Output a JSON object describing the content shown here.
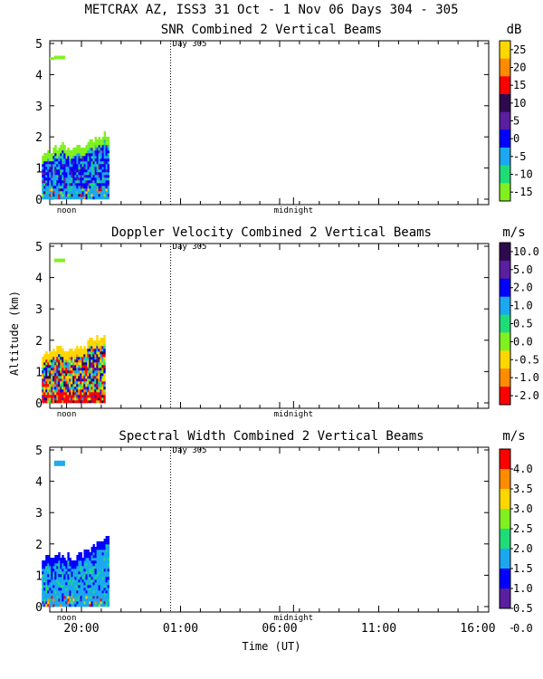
{
  "figure": {
    "title": "METCRAX AZ, ISS3  31 Oct -  1 Nov 06 Days 304 - 305",
    "xlabel": "Time (UT)",
    "ylabel": "Altitude (km)",
    "time_ticks": [
      "20:00",
      "01:00",
      "06:00",
      "11:00",
      "16:00"
    ],
    "markers": [
      "noon",
      "midnight"
    ],
    "day_label": "Day 305"
  },
  "chart_data": [
    {
      "type": "heatmap",
      "title": "SNR Combined 2 Vertical Beams",
      "units": "dB",
      "colorbar_ticks": [
        "25",
        "20",
        "15",
        "10",
        "5",
        "0",
        "-5",
        "-10",
        "-15"
      ],
      "colors": [
        "#ffd700",
        "#ff8c00",
        "#ff0000",
        "#2d0a4e",
        "#5a1ea0",
        "#0000ff",
        "#1ca8f0",
        "#1edc78",
        "#80f020"
      ],
      "ylim": [
        0,
        5
      ],
      "yticks": [
        "0",
        "1",
        "2",
        "3",
        "4",
        "5"
      ],
      "data_span_hours": [
        -2,
        1.4
      ],
      "base_color": "#1ca8f0",
      "top_color": "#80f020",
      "top_km": [
        1.3,
        1.7,
        1.6,
        1.8,
        2.1
      ],
      "high_patch_color": "#80f020"
    },
    {
      "type": "heatmap",
      "title": "Doppler Velocity Combined 2 Vertical Beams",
      "units": "m/s",
      "colorbar_ticks": [
        "10.0",
        "5.0",
        "2.0",
        "1.0",
        "0.5",
        "0.0",
        "-0.5",
        "-1.0",
        "-2.0"
      ],
      "colors": [
        "#2d0a4e",
        "#5a1ea0",
        "#0000ff",
        "#1ca8f0",
        "#1edc78",
        "#80f020",
        "#ffd700",
        "#ff8c00",
        "#ff0000"
      ],
      "ylim": [
        0,
        5
      ],
      "yticks": [
        "0",
        "1",
        "2",
        "3",
        "4",
        "5"
      ],
      "data_span_hours": [
        -2,
        1.2
      ],
      "base_color": "#ff0000",
      "top_color": "#ffd700",
      "top_km": [
        1.5,
        1.7,
        1.6,
        1.9,
        2.1
      ],
      "high_patch_color": "#80f020"
    },
    {
      "type": "heatmap",
      "title": "Spectral Width Combined 2 Vertical Beams",
      "units": "m/s",
      "colorbar_ticks": [
        "4.0",
        "3.5",
        "3.0",
        "2.5",
        "2.0",
        "1.5",
        "1.0",
        "0.5",
        "0.0"
      ],
      "colors": [
        "#ff0000",
        "#ff8c00",
        "#ffd700",
        "#80f020",
        "#1edc78",
        "#1ca8f0",
        "#0000ff",
        "#5a1ea0"
      ],
      "ylim": [
        0,
        5
      ],
      "yticks": [
        "0",
        "1",
        "2",
        "3",
        "4",
        "5"
      ],
      "data_span_hours": [
        -2,
        1.4
      ],
      "base_color": "#1ca8f0",
      "top_color": "#0000ff",
      "top_km": [
        1.5,
        1.6,
        1.5,
        1.8,
        2.2
      ],
      "high_patch_color": "#1ca8f0"
    }
  ]
}
